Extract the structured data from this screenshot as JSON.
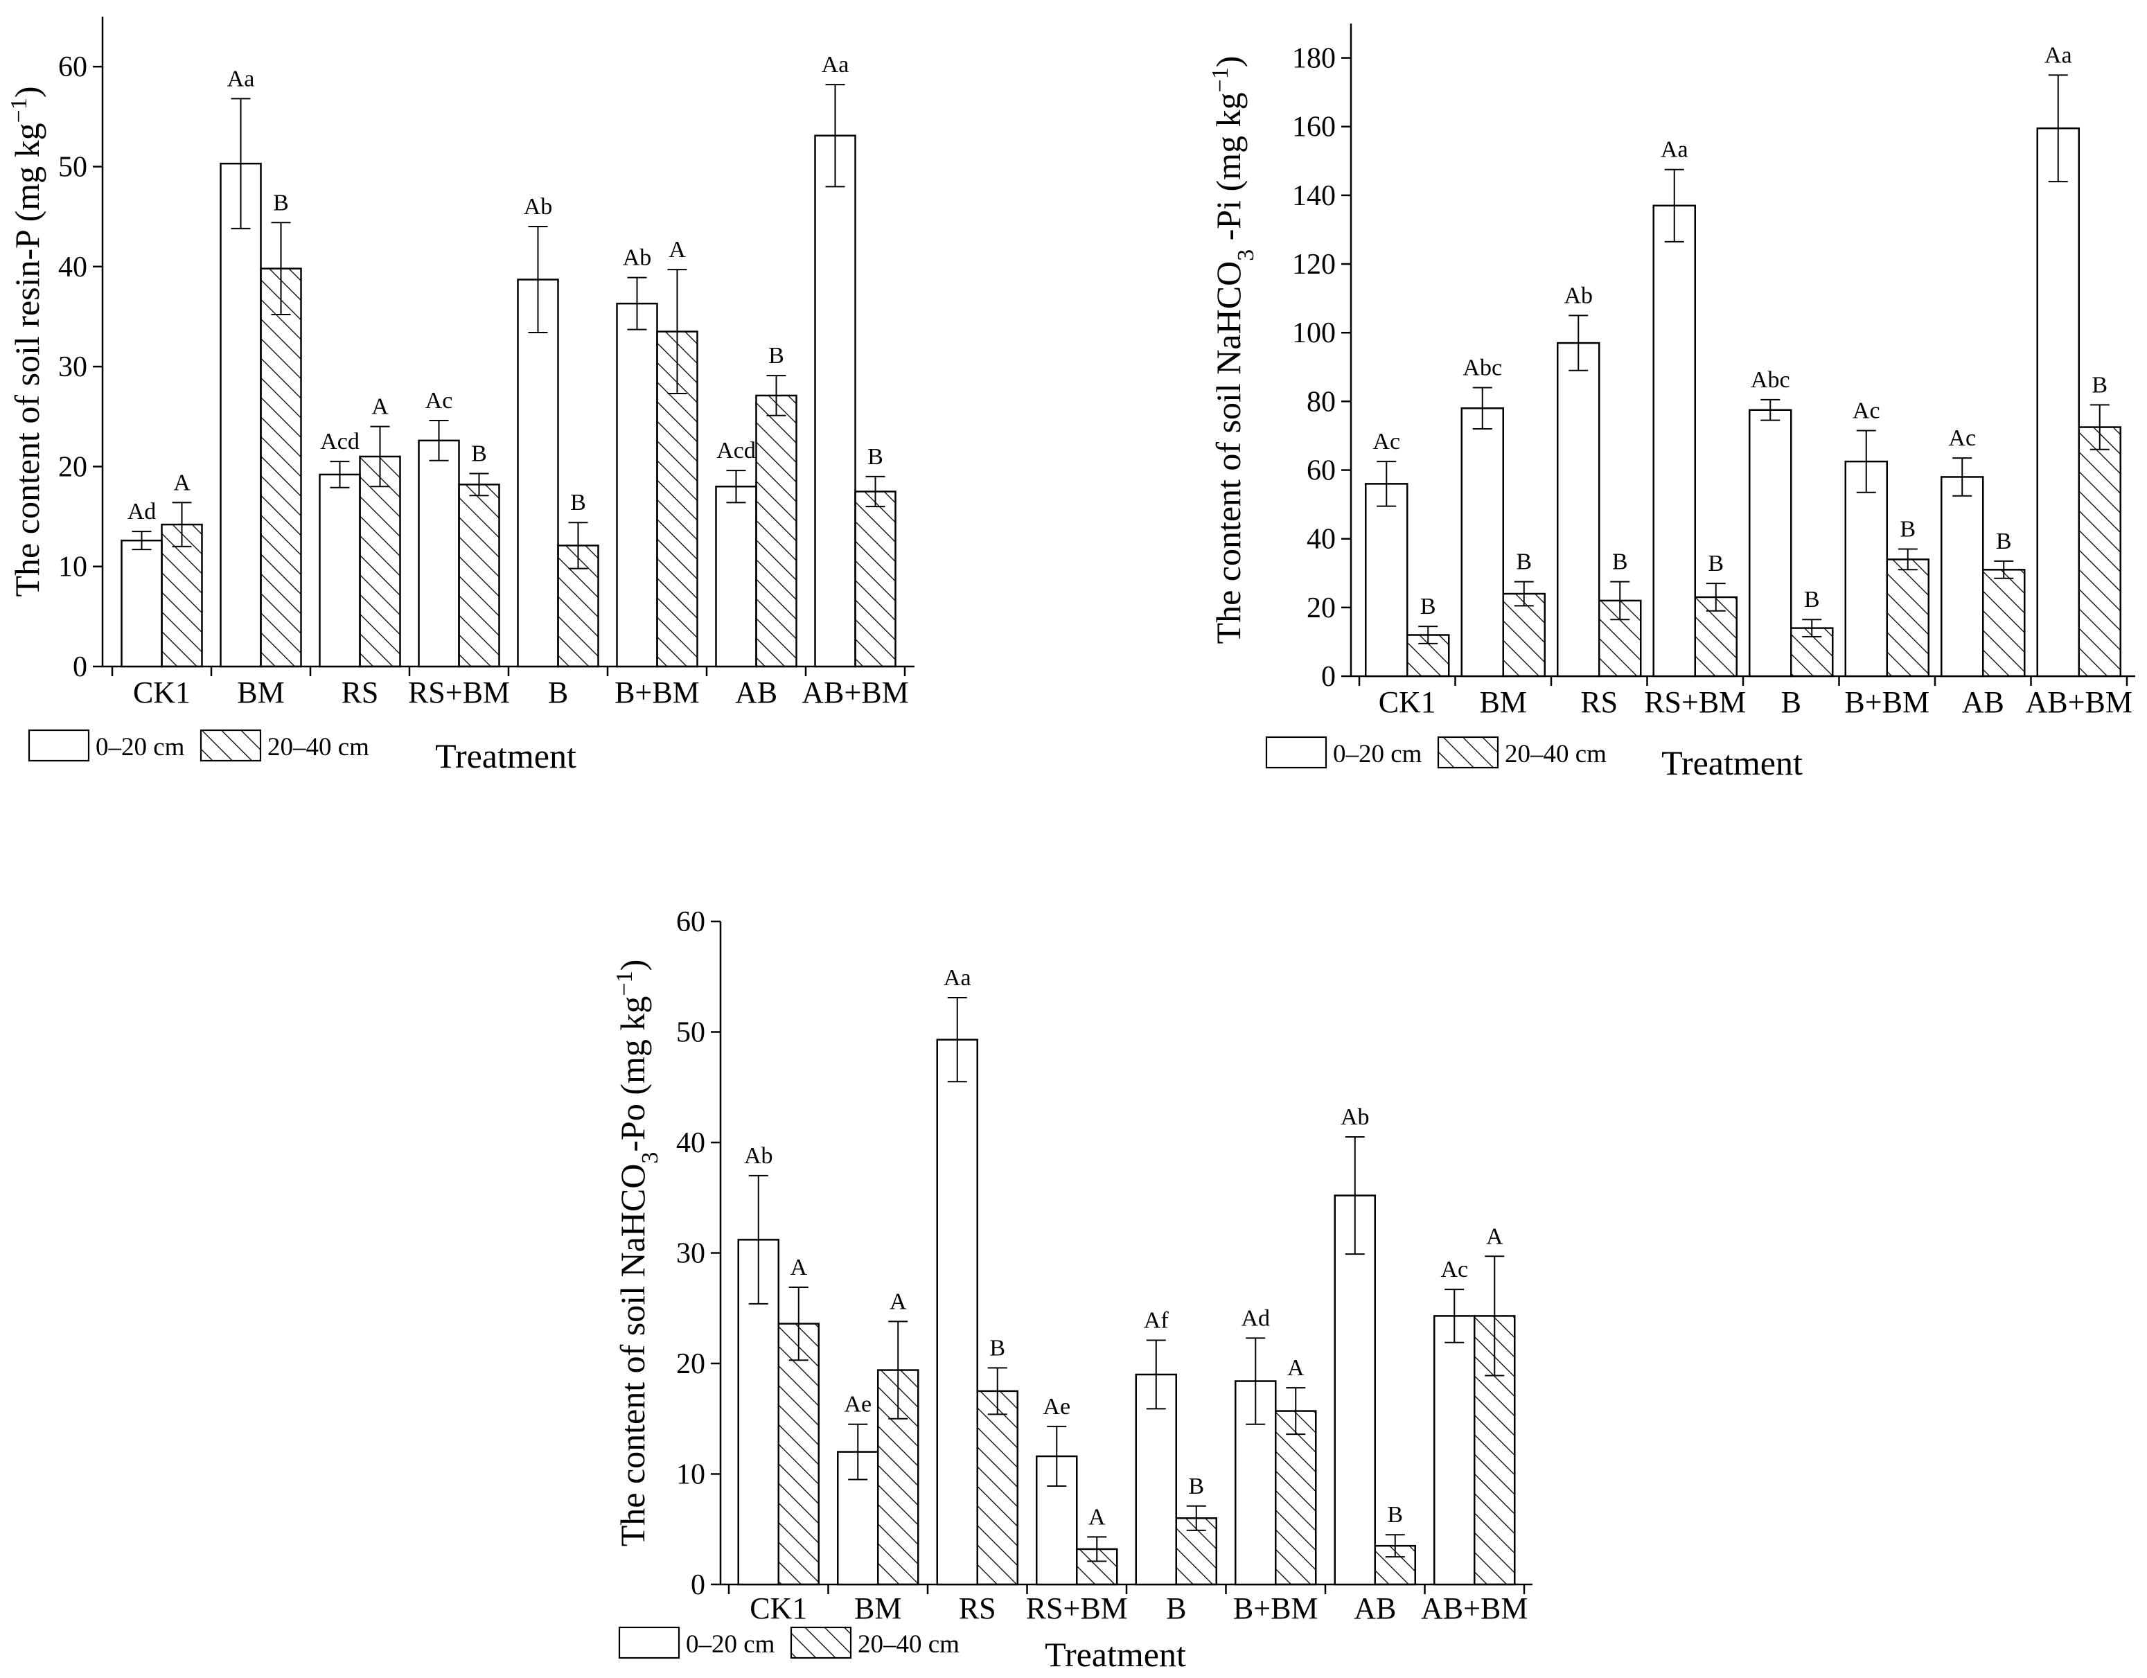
{
  "legend": {
    "series_labels": [
      "0–20 cm",
      "20–40 cm"
    ]
  },
  "chart_data": [
    {
      "type": "bar",
      "title": "",
      "ylabel_main": "The content of soil resin-P (mg kg",
      "ylabel_sup": "−1",
      "ylabel_end": ")",
      "xlabel": "Treatment",
      "ylim": [
        0,
        65
      ],
      "yticks": [
        0,
        10,
        20,
        30,
        40,
        50,
        60
      ],
      "categories": [
        "CK1",
        "BM",
        "RS",
        "RS+BM",
        "B",
        "B+BM",
        "AB",
        "AB+BM"
      ],
      "series": [
        {
          "name": "0–20 cm",
          "values": [
            12.6,
            50.3,
            19.2,
            22.6,
            38.7,
            36.3,
            18.0,
            53.1
          ],
          "errors": [
            0.9,
            6.5,
            1.3,
            2.0,
            5.3,
            2.6,
            1.6,
            5.1
          ],
          "labels": [
            "Ad",
            "Aa",
            "Acd",
            "Ac",
            "Ab",
            "Ab",
            "Acd",
            "Aa"
          ]
        },
        {
          "name": "20–40 cm",
          "values": [
            14.2,
            39.8,
            21.0,
            18.2,
            12.1,
            33.5,
            27.1,
            17.5
          ],
          "errors": [
            2.2,
            4.6,
            3.0,
            1.1,
            2.3,
            6.2,
            2.0,
            1.5
          ],
          "labels": [
            "A",
            "B",
            "A",
            "B",
            "B",
            "A",
            "B",
            "B"
          ]
        }
      ]
    },
    {
      "type": "bar",
      "title": "",
      "ylabel_main": "The content of soil NaHCO",
      "ylabel_sub": "3",
      "ylabel_mid": " -Pi (mg kg",
      "ylabel_sup": "−1",
      "ylabel_end": ")",
      "xlabel": "Treatment",
      "ylim": [
        0,
        190
      ],
      "yticks": [
        0,
        20,
        40,
        60,
        80,
        100,
        120,
        140,
        160,
        180
      ],
      "categories": [
        "CK1",
        "BM",
        "RS",
        "RS+BM",
        "B",
        "B+BM",
        "AB",
        "AB+BM"
      ],
      "series": [
        {
          "name": "0–20 cm",
          "values": [
            56.0,
            78.0,
            97.0,
            137.0,
            77.5,
            62.5,
            58.0,
            159.5
          ],
          "errors": [
            6.5,
            6.0,
            8.0,
            10.5,
            3.0,
            9.0,
            5.5,
            15.5
          ],
          "labels": [
            "Ac",
            "Abc",
            "Ab",
            "Aa",
            "Abc",
            "Ac",
            "Ac",
            "Aa"
          ]
        },
        {
          "name": "20–40 cm",
          "values": [
            12.0,
            24.0,
            22.0,
            23.0,
            14.0,
            34.0,
            31.0,
            72.5
          ],
          "errors": [
            2.5,
            3.5,
            5.5,
            4.0,
            2.5,
            3.0,
            2.5,
            6.5
          ],
          "labels": [
            "B",
            "B",
            "B",
            "B",
            "B",
            "B",
            "B",
            "B"
          ]
        }
      ]
    },
    {
      "type": "bar",
      "title": "",
      "ylabel_main": "The content of soil NaHCO",
      "ylabel_sub": "3",
      "ylabel_mid": "-Po (mg kg",
      "ylabel_sup": "−1",
      "ylabel_end": ")",
      "xlabel": "Treatment",
      "ylim": [
        0,
        60
      ],
      "yticks": [
        0,
        10,
        20,
        30,
        40,
        50,
        60
      ],
      "categories": [
        "CK1",
        "BM",
        "RS",
        "RS+BM",
        "B",
        "B+BM",
        "AB",
        "AB+BM"
      ],
      "series": [
        {
          "name": "0–20 cm",
          "values": [
            31.2,
            12.0,
            49.3,
            11.6,
            19.0,
            18.4,
            35.2,
            24.3
          ],
          "errors": [
            5.8,
            2.5,
            3.8,
            2.7,
            3.1,
            3.9,
            5.3,
            2.4
          ],
          "labels": [
            "Ab",
            "Ae",
            "Aa",
            "Ae",
            "Af",
            "Ad",
            "Ab",
            "Ac"
          ]
        },
        {
          "name": "20–40 cm",
          "values": [
            23.6,
            19.4,
            17.5,
            3.2,
            6.0,
            15.7,
            3.5,
            24.3
          ],
          "errors": [
            3.3,
            4.4,
            2.1,
            1.1,
            1.1,
            2.1,
            1.0,
            5.4
          ],
          "labels": [
            "A",
            "A",
            "B",
            "A",
            "B",
            "A",
            "B",
            "A"
          ]
        }
      ]
    }
  ]
}
